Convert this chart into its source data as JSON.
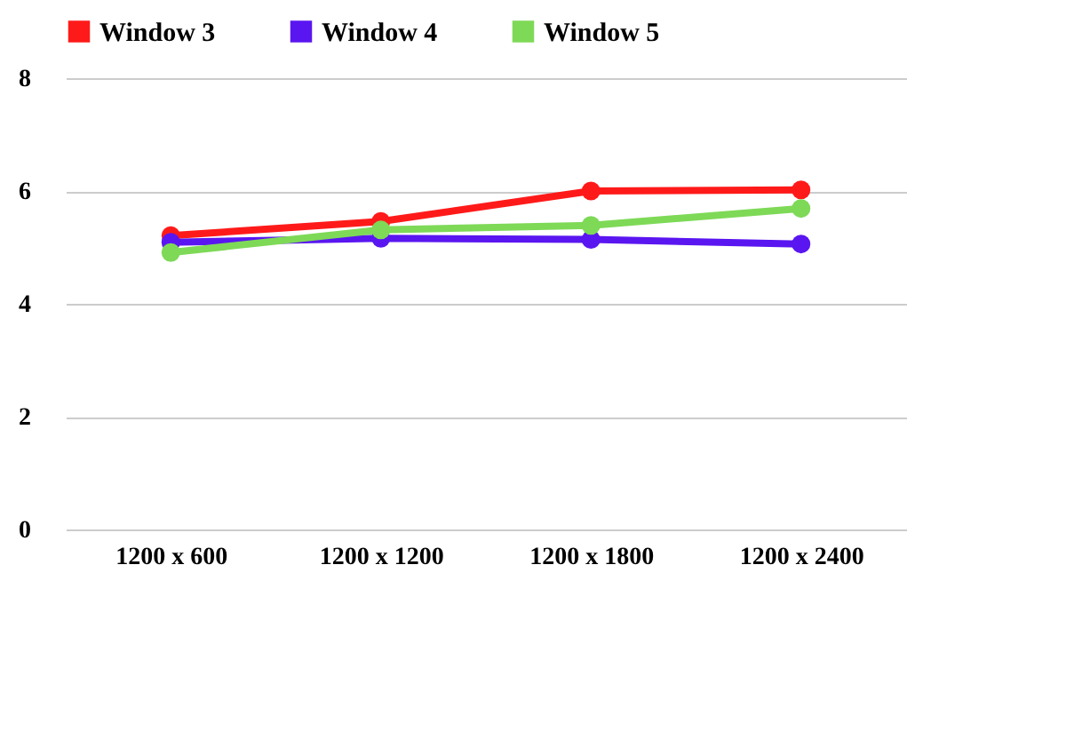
{
  "chart_data": {
    "type": "line",
    "categories": [
      "1200 x 600",
      "1200 x 1200",
      "1200 x 1800",
      "1200 x 2400"
    ],
    "series": [
      {
        "name": "Window 3",
        "color": "#ff1a1a",
        "values": [
          5.21,
          5.46,
          6.0,
          6.02
        ]
      },
      {
        "name": "Window 4",
        "color": "#5a16f0",
        "values": [
          5.09,
          5.16,
          5.14,
          5.06
        ]
      },
      {
        "name": "Window 5",
        "color": "#7ed957",
        "values": [
          4.91,
          5.31,
          5.39,
          5.69
        ]
      }
    ],
    "ylim": [
      0,
      8
    ],
    "yticks": [
      0,
      2,
      4,
      6,
      8
    ],
    "grid": "y",
    "legend": "top",
    "marker": "circle",
    "line_style": "solid"
  }
}
